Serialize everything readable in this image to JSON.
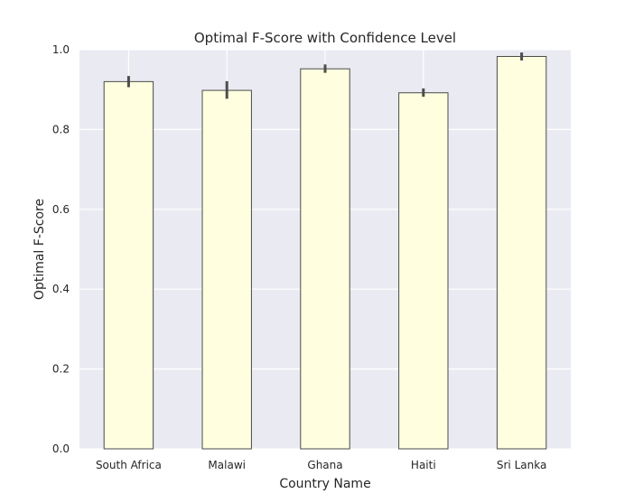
{
  "chart_data": {
    "type": "bar",
    "title": "Optimal F-Score with Confidence Level",
    "xlabel": "Country Name",
    "ylabel": "Optimal F-Score",
    "categories": [
      "South Africa",
      "Malawi",
      "Ghana",
      "Haiti",
      "Sri Lanka"
    ],
    "values": [
      0.92,
      0.898,
      0.952,
      0.892,
      0.983
    ],
    "error_low": [
      0.906,
      0.877,
      0.942,
      0.882,
      0.973
    ],
    "error_high": [
      0.934,
      0.921,
      0.963,
      0.903,
      0.993
    ],
    "ylim": [
      0,
      1.0
    ],
    "yticks": [
      "0.0",
      "0.2",
      "0.4",
      "0.6",
      "0.8",
      "1.0"
    ],
    "grid": true,
    "colors": {
      "bar_fill": "#ffffe0",
      "bar_edge": "#4a4a4a",
      "error_bar": "#4d4d4d",
      "plot_background": "#eaeaf2",
      "grid": "#ffffff"
    }
  }
}
